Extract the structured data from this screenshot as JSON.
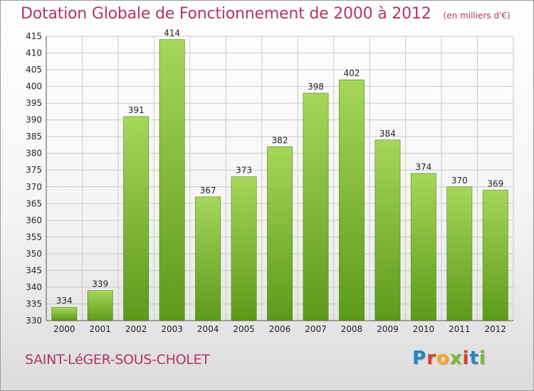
{
  "header": {
    "title": "Dotation Globale de Fonctionnement de 2000 à 2012",
    "subtitle": "(en milliers d'€)"
  },
  "footer": {
    "commune": "SAINT-LéGER-SOUS-CHOLET",
    "brand_letters": [
      "P",
      "r",
      "o",
      "x",
      "i",
      "t",
      "i"
    ],
    "brand_colors": [
      "#1e88c7",
      "#e23b2e",
      "#f5a623",
      "#7cb82f",
      "#e23b2e",
      "#1e88c7",
      "#7cb82f"
    ]
  },
  "colors": {
    "bar_top": "#a6d65a",
    "bar_bottom": "#5c9a1a",
    "bar_edge": "#4f8a12",
    "grid": "#c8c8c8",
    "axis_text": "#222222",
    "title": "#b3336a"
  },
  "chart_data": {
    "type": "bar",
    "categories": [
      "2000",
      "2001",
      "2002",
      "2003",
      "2004",
      "2005",
      "2006",
      "2007",
      "2008",
      "2009",
      "2010",
      "2011",
      "2012"
    ],
    "values": [
      334,
      339,
      391,
      414,
      367,
      373,
      382,
      398,
      402,
      384,
      374,
      370,
      369
    ],
    "ylim": [
      330,
      415
    ],
    "yticks": [
      330,
      335,
      340,
      345,
      350,
      355,
      360,
      365,
      370,
      375,
      380,
      385,
      390,
      395,
      400,
      405,
      410,
      415
    ],
    "grid": true,
    "data_labels": true
  }
}
